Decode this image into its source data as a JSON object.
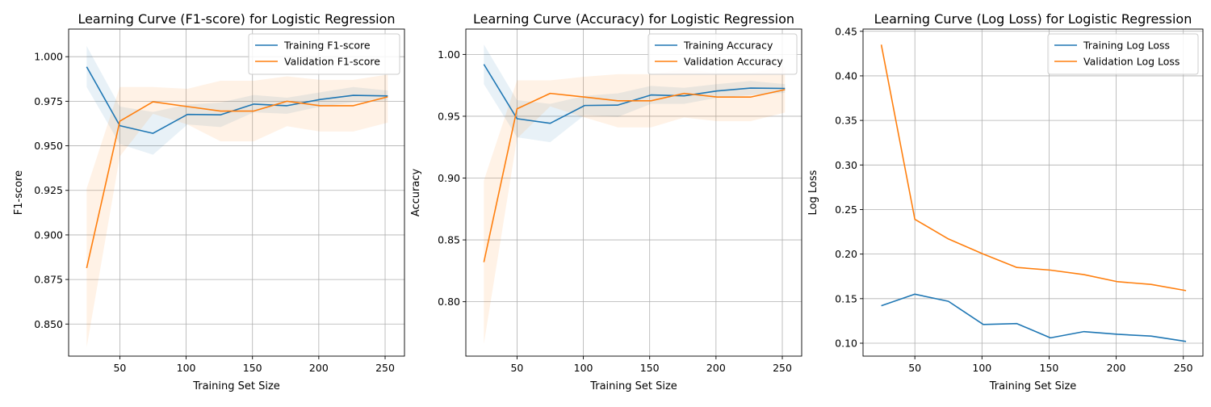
{
  "chart_data": [
    {
      "type": "line",
      "title": "Learning Curve (F1-score) for Logistic Regression",
      "xlabel": "Training Set Size",
      "ylabel": "F1-score",
      "xlim": [
        11.4,
        264.6
      ],
      "ylim": [
        0.832,
        1.0155
      ],
      "xticks": [
        50,
        100,
        150,
        200,
        250
      ],
      "yticks": [
        0.85,
        0.875,
        0.9,
        0.925,
        0.95,
        0.975,
        1.0
      ],
      "ytick_decimals": 3,
      "grid": true,
      "legend": "upper right",
      "x": [
        25,
        50,
        75,
        101,
        126,
        151,
        176,
        201,
        226,
        252
      ],
      "series": [
        {
          "name": "Training F1-score",
          "color": "#1f77b4",
          "values": [
            0.9943,
            0.9613,
            0.957,
            0.9676,
            0.9674,
            0.9734,
            0.9725,
            0.976,
            0.9783,
            0.978
          ],
          "band_lower": [
            0.983,
            0.951,
            0.945,
            0.962,
            0.9605,
            0.9688,
            0.968,
            0.972,
            0.9743,
            0.9755
          ],
          "band_upper": [
            1.006,
            0.972,
            0.969,
            0.9732,
            0.9743,
            0.9785,
            0.977,
            0.98,
            0.983,
            0.981
          ]
        },
        {
          "name": "Validation F1-score",
          "color": "#ff7f0e",
          "values": [
            0.8814,
            0.9638,
            0.9747,
            0.972,
            0.9695,
            0.9695,
            0.975,
            0.9725,
            0.9725,
            0.9775
          ],
          "band_lower": [
            0.837,
            0.944,
            0.968,
            0.962,
            0.9525,
            0.9525,
            0.961,
            0.958,
            0.958,
            0.963
          ],
          "band_upper": [
            0.926,
            0.983,
            0.983,
            0.982,
            0.9865,
            0.9865,
            0.989,
            0.987,
            0.987,
            0.99
          ]
        }
      ]
    },
    {
      "type": "line",
      "title": "Learning Curve (Accuracy) for Logistic Regression",
      "xlabel": "Training Set Size",
      "ylabel": "Accuracy",
      "xlim": [
        11.4,
        264.6
      ],
      "ylim": [
        0.756,
        1.0205
      ],
      "xticks": [
        50,
        100,
        150,
        200,
        250
      ],
      "yticks": [
        0.8,
        0.85,
        0.9,
        0.95,
        1.0
      ],
      "ytick_decimals": 2,
      "grid": true,
      "legend": "upper right",
      "x": [
        25,
        50,
        75,
        101,
        126,
        151,
        176,
        201,
        226,
        252
      ],
      "series": [
        {
          "name": "Training Accuracy",
          "color": "#1f77b4",
          "values": [
            0.992,
            0.948,
            0.9443,
            0.9587,
            0.959,
            0.9672,
            0.9665,
            0.9705,
            0.9728,
            0.9725
          ],
          "band_lower": [
            0.976,
            0.933,
            0.929,
            0.951,
            0.9495,
            0.96,
            0.96,
            0.965,
            0.967,
            0.969
          ],
          "band_upper": [
            1.008,
            0.963,
            0.96,
            0.9665,
            0.9685,
            0.9745,
            0.973,
            0.976,
            0.9785,
            0.976
          ]
        },
        {
          "name": "Validation Accuracy",
          "color": "#ff7f0e",
          "values": [
            0.832,
            0.956,
            0.9685,
            0.9655,
            0.9625,
            0.9625,
            0.9685,
            0.9655,
            0.9655,
            0.9715
          ],
          "band_lower": [
            0.766,
            0.932,
            0.958,
            0.949,
            0.941,
            0.941,
            0.949,
            0.946,
            0.946,
            0.953
          ],
          "band_upper": [
            0.898,
            0.979,
            0.979,
            0.982,
            0.984,
            0.984,
            0.988,
            0.985,
            0.985,
            0.99
          ]
        }
      ]
    },
    {
      "type": "line",
      "title": "Learning Curve (Log Loss) for Logistic Regression",
      "xlabel": "Training Set Size",
      "ylabel": "Log Loss",
      "xlim": [
        11.4,
        264.6
      ],
      "ylim": [
        0.0855,
        0.4525
      ],
      "xticks": [
        50,
        100,
        150,
        200,
        250
      ],
      "yticks": [
        0.1,
        0.15,
        0.2,
        0.25,
        0.3,
        0.35,
        0.4,
        0.45
      ],
      "ytick_decimals": 2,
      "grid": true,
      "legend": "upper right",
      "x": [
        25,
        50,
        75,
        101,
        126,
        151,
        176,
        201,
        226,
        252
      ],
      "series": [
        {
          "name": "Training Log Loss",
          "color": "#1f77b4",
          "values": [
            0.142,
            0.155,
            0.147,
            0.121,
            0.122,
            0.106,
            0.113,
            0.11,
            0.108,
            0.102
          ]
        },
        {
          "name": "Validation Log Loss",
          "color": "#ff7f0e",
          "values": [
            0.435,
            0.239,
            0.217,
            0.2,
            0.185,
            0.182,
            0.177,
            0.169,
            0.166,
            0.159
          ]
        }
      ]
    }
  ]
}
